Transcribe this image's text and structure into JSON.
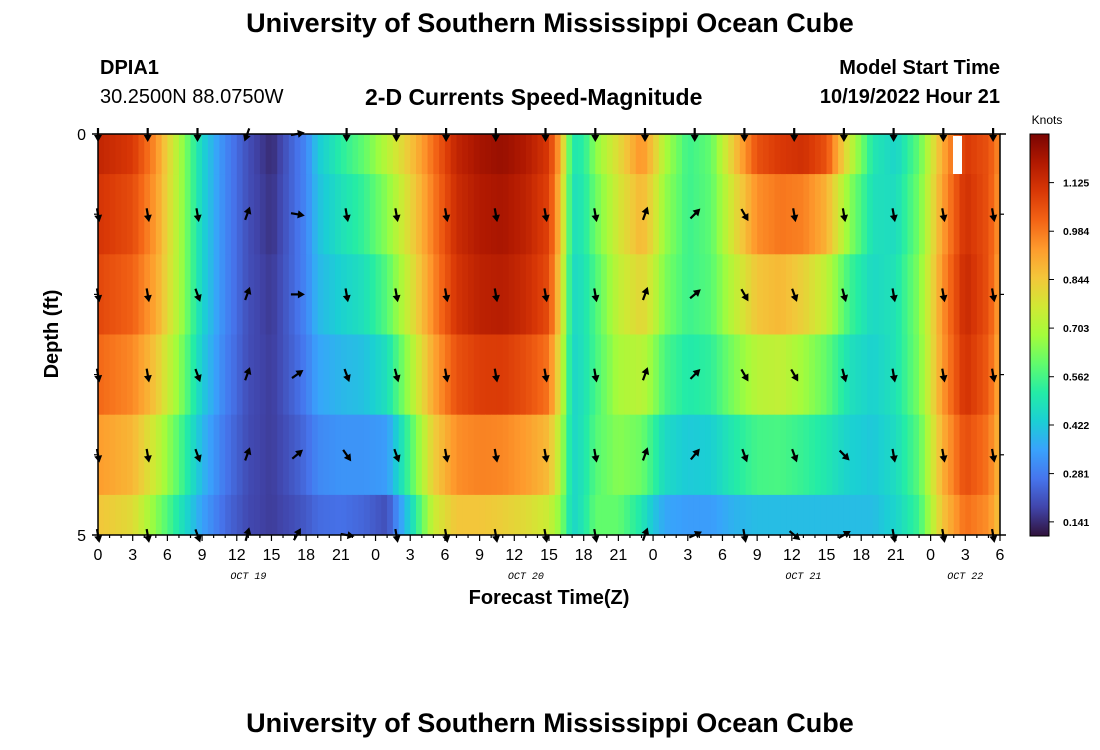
{
  "page": {
    "title": "University of Southern Mississippi Ocean Cube",
    "footer_title": "University of Southern Mississippi Ocean Cube"
  },
  "station": {
    "id": "DPIA1",
    "coordinates": "30.2500N  88.0750W"
  },
  "model": {
    "start_label": "Model Start Time",
    "start_value": "10/19/2022 Hour 21"
  },
  "colors": {
    "scale": [
      "#30123b",
      "#4145ab",
      "#4675ed",
      "#39a2fc",
      "#1bcfd4",
      "#24eca6",
      "#61fc6c",
      "#a4fc3b",
      "#d1e834",
      "#f3c63a",
      "#fe9b2d",
      "#f36315",
      "#d93806",
      "#b11901",
      "#7a0402"
    ]
  },
  "chart_data": {
    "type": "heatmap",
    "title": "2-D Currents Speed-Magnitude",
    "xlabel": "Forecast Time(Z)",
    "ylabel": "Depth (ft)",
    "ylim": [
      0,
      5
    ],
    "yticks": [
      "0",
      "5"
    ],
    "y_minor_ticks": [
      1,
      2,
      3,
      4
    ],
    "depth_rows": 5,
    "x_hour_ticks": [
      "0",
      "3",
      "6",
      "9",
      "12",
      "15",
      "18",
      "21",
      "0",
      "3",
      "6",
      "9",
      "12",
      "15",
      "18",
      "21",
      "0",
      "3",
      "6",
      "9",
      "12",
      "15",
      "18",
      "21",
      "0",
      "3",
      "6"
    ],
    "date_labels": [
      {
        "label": "OCT 19",
        "hour": 13
      },
      {
        "label": "OCT 20",
        "hour": 37
      },
      {
        "label": "OCT 21",
        "hour": 61
      },
      {
        "label": "OCT 22",
        "hour": 75
      }
    ],
    "colorbar": {
      "label": "Knots",
      "min": 0.1,
      "max": 1.266,
      "ticks": [
        "1.125",
        "0.984",
        "0.844",
        "0.703",
        "0.562",
        "0.422",
        "0.281",
        "0.141"
      ]
    },
    "speed_profile": {
      "hours": [
        0,
        3,
        5,
        7,
        9,
        11,
        13,
        15,
        17,
        18,
        19,
        21,
        23,
        25,
        27,
        29,
        31,
        33,
        35,
        37,
        39,
        40,
        41,
        42,
        43,
        45,
        47,
        48,
        49,
        51,
        53,
        55,
        57,
        59,
        61,
        63,
        65,
        67,
        69,
        71,
        73,
        75,
        77,
        78
      ],
      "surface": [
        1.15,
        1.1,
        0.95,
        0.7,
        0.45,
        0.3,
        0.2,
        0.14,
        0.25,
        0.3,
        0.42,
        0.52,
        0.6,
        0.72,
        0.85,
        1.0,
        1.15,
        1.2,
        1.22,
        1.18,
        1.1,
        0.9,
        0.5,
        0.52,
        0.65,
        0.8,
        0.95,
        0.85,
        0.7,
        0.55,
        0.6,
        0.85,
        1.05,
        1.1,
        1.12,
        1.05,
        0.75,
        0.5,
        0.45,
        0.6,
        0.9,
        1.1,
        1.05,
        0.95
      ],
      "mid": [
        1.05,
        1.0,
        0.9,
        0.7,
        0.45,
        0.3,
        0.2,
        0.17,
        0.25,
        0.3,
        0.38,
        0.42,
        0.45,
        0.55,
        0.75,
        0.95,
        1.1,
        1.15,
        1.16,
        1.12,
        1.05,
        0.8,
        0.45,
        0.48,
        0.55,
        0.72,
        0.78,
        0.72,
        0.62,
        0.55,
        0.58,
        0.7,
        0.8,
        0.82,
        0.75,
        0.65,
        0.5,
        0.45,
        0.5,
        0.65,
        0.95,
        1.15,
        1.05,
        0.9
      ],
      "bottom": [
        0.85,
        0.8,
        0.65,
        0.5,
        0.35,
        0.25,
        0.19,
        0.17,
        0.2,
        0.22,
        0.25,
        0.26,
        0.24,
        0.2,
        0.45,
        0.75,
        0.85,
        0.85,
        0.83,
        0.8,
        0.75,
        0.65,
        0.45,
        0.5,
        0.6,
        0.6,
        0.5,
        0.42,
        0.36,
        0.34,
        0.34,
        0.38,
        0.4,
        0.4,
        0.4,
        0.4,
        0.4,
        0.4,
        0.45,
        0.55,
        0.85,
        1.0,
        0.95,
        0.85
      ]
    },
    "vectors": {
      "hours": [
        0,
        4.3,
        8.6,
        12.9,
        17.2,
        21.5,
        25.8,
        30.1,
        34.4,
        38.7,
        43,
        47.3,
        51.6,
        55.9,
        60.2,
        64.5,
        68.8,
        73.1,
        77.4
      ],
      "rows": [
        [
          180,
          180,
          180,
          200,
          80,
          180,
          180,
          180,
          180,
          180,
          180,
          180,
          180,
          180,
          180,
          180,
          180,
          180,
          180
        ],
        [
          170,
          170,
          170,
          20,
          100,
          170,
          170,
          170,
          170,
          170,
          170,
          20,
          45,
          150,
          170,
          170,
          170,
          170,
          170
        ],
        [
          170,
          170,
          160,
          20,
          90,
          170,
          170,
          170,
          170,
          170,
          170,
          20,
          50,
          150,
          160,
          165,
          170,
          170,
          170
        ],
        [
          170,
          170,
          160,
          20,
          55,
          160,
          165,
          170,
          170,
          170,
          170,
          20,
          45,
          150,
          150,
          165,
          170,
          170,
          170
        ],
        [
          170,
          170,
          160,
          20,
          50,
          145,
          160,
          170,
          170,
          170,
          170,
          20,
          40,
          160,
          160,
          135,
          170,
          170,
          170
        ],
        [
          170,
          170,
          160,
          15,
          30,
          100,
          170,
          170,
          170,
          170,
          170,
          20,
          65,
          170,
          130,
          60,
          170,
          170,
          170
        ]
      ]
    }
  }
}
